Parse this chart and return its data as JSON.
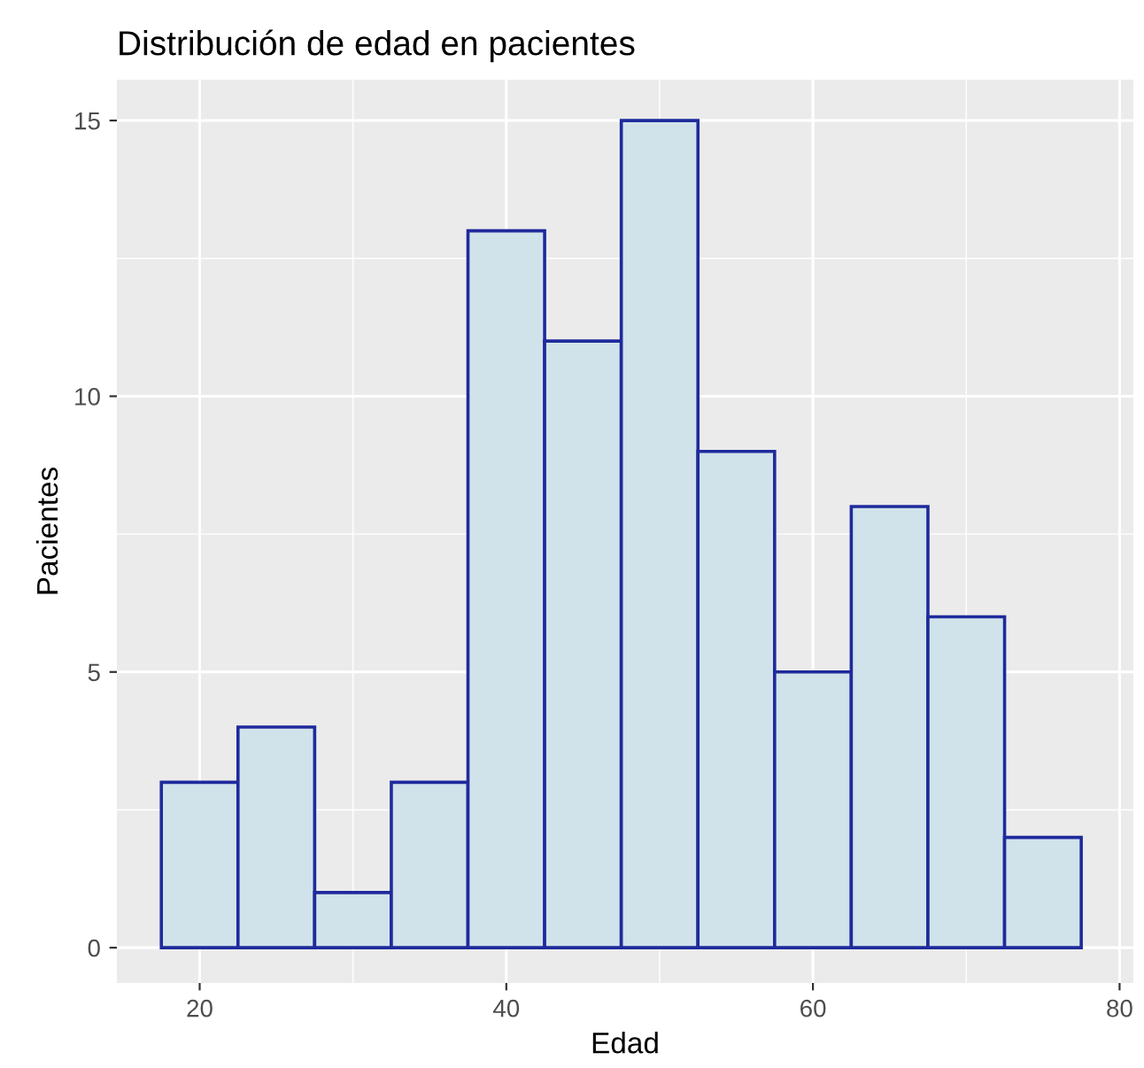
{
  "chart_data": {
    "type": "histogram",
    "title": "Distribución de edad en pacientes",
    "xlabel": "Edad",
    "ylabel": "Pacientes",
    "bins": [
      17.5,
      22.5,
      27.5,
      32.5,
      37.5,
      42.5,
      47.5,
      52.5,
      57.5,
      62.5,
      67.5,
      72.5,
      77.5
    ],
    "values": [
      3,
      4,
      1,
      3,
      13,
      11,
      15,
      9,
      5,
      8,
      6,
      2
    ],
    "color": "#d0e3ea",
    "xlim": [
      14.6,
      80.9
    ],
    "xticks": [
      20,
      40,
      60,
      80
    ],
    "ylim": [
      -0.64,
      15.74
    ],
    "yticks": [
      0,
      5,
      10,
      15
    ],
    "grid": true
  }
}
